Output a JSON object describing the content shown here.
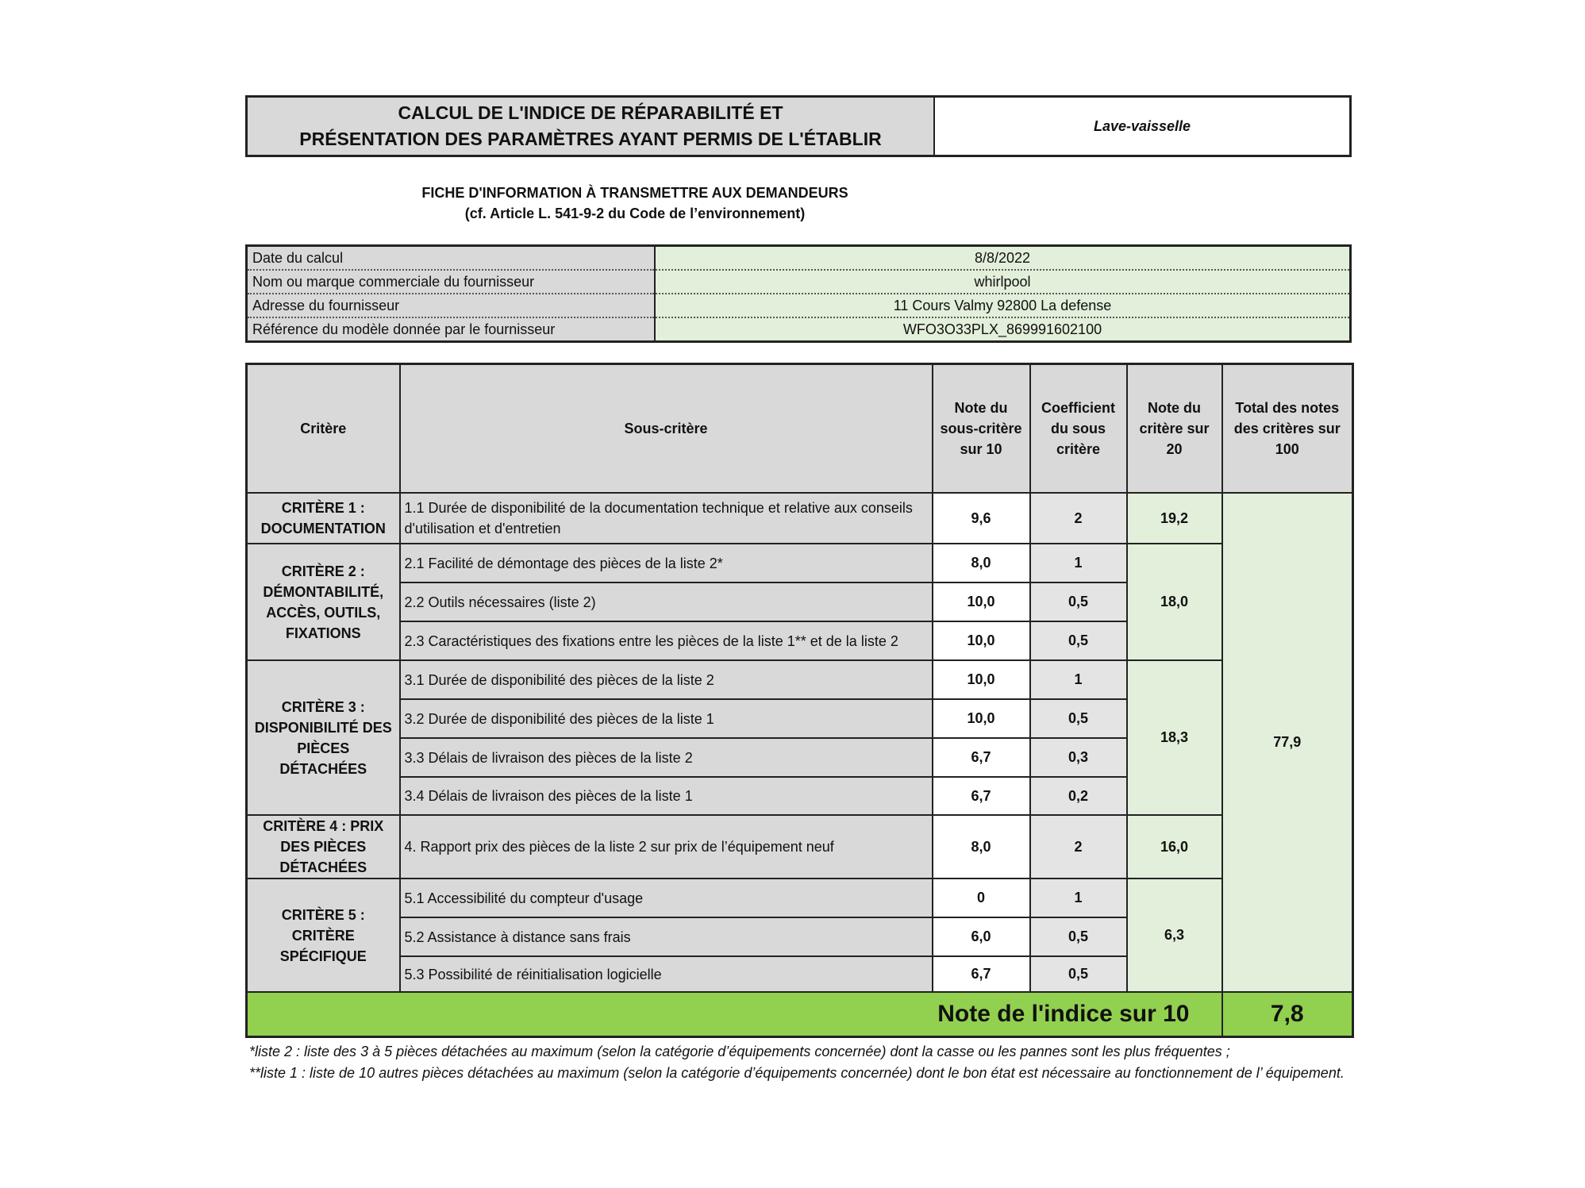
{
  "title": {
    "line1": "CALCUL DE L'INDICE DE RÉPARABILITÉ ET",
    "line2": "PRÉSENTATION DES PARAMÈTRES AYANT PERMIS DE L'ÉTABLIR",
    "product": "Lave-vaisselle"
  },
  "fiche": {
    "line1": "FICHE D'INFORMATION À TRANSMETTRE AUX DEMANDEURS",
    "line2": "(cf. Article L. 541-9-2 du Code de l’environnement)"
  },
  "info": [
    {
      "label": "Date du calcul",
      "value": "8/8/2022"
    },
    {
      "label": "Nom ou marque commerciale du fournisseur",
      "value": "whirlpool"
    },
    {
      "label": "Adresse du fournisseur",
      "value": "11 Cours Valmy 92800 La defense"
    },
    {
      "label": "Référence du modèle donnée par le fournisseur",
      "value": "WFO3O33PLX_869991602100"
    }
  ],
  "headers": [
    "Critère",
    "Sous-critère",
    "Note du sous-critère sur 10",
    "Coefficient du sous critère",
    "Note du critère sur 20",
    "Total des notes des critères sur 100"
  ],
  "criteria": [
    {
      "name": "CRITÈRE 1 : DOCUMENTATION",
      "note": "19,2",
      "subs": [
        {
          "label": "1.1 Durée de disponibilité de la documentation technique et relative aux conseils d'utilisation et d'entretien",
          "note": "9,6",
          "coef": "2"
        }
      ]
    },
    {
      "name": "CRITÈRE 2 : DÉMONTABILITÉ, ACCÈS, OUTILS, FIXATIONS",
      "note": "18,0",
      "subs": [
        {
          "label": "2.1 Facilité de démontage des pièces de la liste 2*",
          "note": "8,0",
          "coef": "1"
        },
        {
          "label": "2.2 Outils nécessaires (liste 2)",
          "note": "10,0",
          "coef": "0,5"
        },
        {
          "label": "2.3 Caractéristiques des fixations entre les pièces de la liste 1** et de la liste 2",
          "note": "10,0",
          "coef": "0,5"
        }
      ]
    },
    {
      "name": "CRITÈRE 3 : DISPONIBILITÉ DES PIÈCES DÉTACHÉES",
      "note": "18,3",
      "subs": [
        {
          "label": "3.1 Durée de disponibilité des pièces de la liste 2",
          "note": "10,0",
          "coef": "1"
        },
        {
          "label": "3.2 Durée de disponibilité des pièces de la liste 1",
          "note": "10,0",
          "coef": "0,5"
        },
        {
          "label": "3.3 Délais de livraison des pièces de la liste 2",
          "note": "6,7",
          "coef": "0,3"
        },
        {
          "label": "3.4 Délais de livraison des pièces de la liste 1",
          "note": "6,7",
          "coef": "0,2"
        }
      ]
    },
    {
      "name": "CRITÈRE 4 : PRIX DES PIÈCES DÉTACHÉES",
      "note": "16,0",
      "subs": [
        {
          "label": "4. Rapport prix des pièces de la liste 2 sur prix de l’équipement neuf",
          "note": "8,0",
          "coef": "2"
        }
      ]
    },
    {
      "name": "CRITÈRE 5 : CRITÈRE SPÉCIFIQUE",
      "note": "6,3",
      "subs": [
        {
          "label": "5.1 Accessibilité du compteur d'usage",
          "note": "0",
          "coef": "1"
        },
        {
          "label": "5.2 Assistance à distance sans frais",
          "note": "6,0",
          "coef": "0,5"
        },
        {
          "label": "5.3 Possibilité de réinitialisation logicielle",
          "note": "6,7",
          "coef": "0,5"
        }
      ]
    }
  ],
  "total": "77,9",
  "final": {
    "label": "Note de l'indice sur 10",
    "value": "7,8"
  },
  "footnotes": [
    "*liste 2 : liste des 3 à 5 pièces détachées au maximum (selon la catégorie d’équipements concernée) dont la casse ou les pannes sont les plus fréquentes ;",
    "**liste 1 : liste de 10 autres pièces détachées au maximum (selon la catégorie d’équipements concernée) dont le bon état est nécessaire au fonctionnement de l’ équipement."
  ],
  "colors": {
    "header_gray": "#d9d9d9",
    "light_green": "#e2efda",
    "final_green": "#92d050"
  }
}
